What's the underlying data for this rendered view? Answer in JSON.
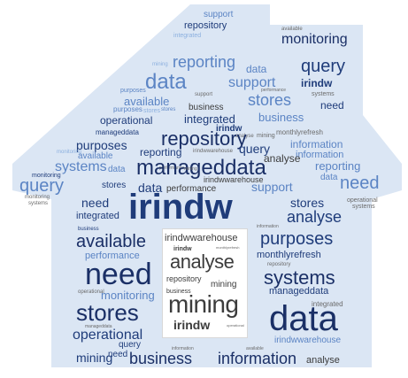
{
  "colors": {
    "house_fill": "#dbe6f4",
    "navy": "#1f3c7a",
    "mid_blue": "#5b84c4",
    "light_blue": "#8cb0df",
    "door_gray": "#3c3c3c"
  },
  "words": {
    "w001": "support",
    "w002": "repository",
    "w003": "integrated",
    "w004": "available",
    "w005": "monitoring",
    "w006": "reporting",
    "w007": "mining",
    "w008": "data",
    "w009": "query",
    "w010": "data",
    "w011": "support",
    "w012": "irindw",
    "w013": "purposes",
    "w014": "available",
    "w015": "systems",
    "w016": "stores",
    "w017": "need",
    "w018": "purposes",
    "w019": "stores",
    "w020": "support",
    "w021": "operational",
    "w022": "performance",
    "w023": "business",
    "w024": "stores",
    "w025": "manageddata",
    "w026": "integrated",
    "w027": "business",
    "w028": "irindw",
    "w029": "monthlyrefresh",
    "w030": "analyse",
    "w031": "purposes",
    "w032": "repository",
    "w033": "mining",
    "w034": "information",
    "w035": "monitoring",
    "w036": "available",
    "w037": "irindwwarehouse",
    "w038": "query",
    "w039": "information",
    "w040": "systems",
    "w041": "reporting",
    "w042": "analyse",
    "w043": "data",
    "w044": "reporting",
    "w045": "performance",
    "w046": "manageddata",
    "w047": "mining",
    "w048": "data",
    "w049": "need",
    "w050": "stores",
    "w051": "monitoring",
    "w052": "query",
    "w053": "monitoring",
    "w054": "systems",
    "w055": "irindwwarehouse",
    "w056": "support",
    "w057": "operational",
    "w058": "systems",
    "w059": "need",
    "w060": "data",
    "w061": "performance",
    "w062": "stores",
    "w063": "integrated",
    "w064": "irindw",
    "w065": "analyse",
    "w066": "business",
    "w067": "information",
    "w068": "available",
    "w069": "purposes",
    "w070": "performance",
    "w071": "monthlyrefresh",
    "w072": "repository",
    "w073": "need",
    "w074": "systems",
    "w075": "operational",
    "w076": "manageddata",
    "w077": "monitoring",
    "w078": "integrated",
    "w079": "stores",
    "w080": "manageddata",
    "w081": "data",
    "w082": "operational",
    "w083": "query",
    "w084": "irindwwarehouse",
    "w085": "mining",
    "w086": "need",
    "w087": "available",
    "w088": "business",
    "w089": "information",
    "w090": "information",
    "w091": "analyse",
    "w092": "irindwwarehouse",
    "w093": "irindw",
    "w094": "monthlyrefresh",
    "w095": "analyse",
    "w096": "repository",
    "w097": "mining",
    "w098": "business",
    "w099": "mining",
    "w100": "irindw",
    "w101": "operational"
  }
}
